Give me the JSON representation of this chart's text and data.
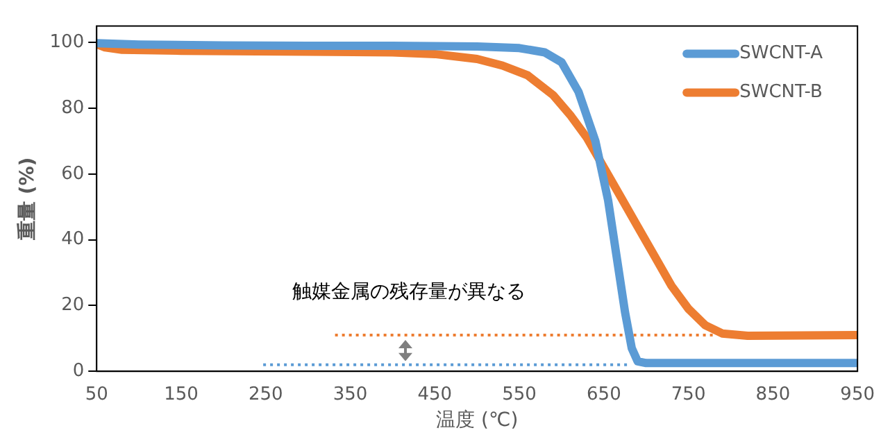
{
  "chart_data": {
    "type": "line",
    "xlabel": "温度 (℃)",
    "ylabel": "重量 (%)",
    "xlim": [
      50,
      950
    ],
    "xticks": [
      50,
      150,
      250,
      350,
      450,
      550,
      650,
      750,
      850,
      950
    ],
    "ylim": [
      0,
      105
    ],
    "yticks": [
      0,
      20,
      40,
      60,
      80,
      100
    ],
    "grid": false,
    "legend": "top right",
    "marker": "none",
    "line_style": "solid",
    "annotations": [
      "触媒金属の残存量が異なる"
    ],
    "series": [
      {
        "name": "SWCNT-A",
        "color": "#5b9bd5",
        "x": [
          50,
          100,
          200,
          300,
          400,
          500,
          550,
          580,
          600,
          620,
          640,
          655,
          665,
          675,
          683,
          690,
          700,
          800,
          950
        ],
        "values": [
          99.8,
          99.4,
          99.1,
          99,
          99,
          98.8,
          98.3,
          97,
          94,
          85,
          70,
          52,
          35,
          18,
          7,
          3,
          2.5,
          2.5,
          2.5
        ]
      },
      {
        "name": "SWCNT-B",
        "color": "#ed7d31",
        "x": [
          50,
          60,
          80,
          150,
          300,
          400,
          450,
          500,
          530,
          560,
          590,
          610,
          630,
          650,
          670,
          690,
          710,
          730,
          750,
          770,
          790,
          820,
          950
        ],
        "values": [
          99.5,
          98.5,
          97.8,
          97.5,
          97.2,
          97,
          96.5,
          95,
          93,
          90,
          84,
          78,
          71,
          62,
          53,
          44,
          35,
          26,
          19,
          14,
          11.5,
          10.8,
          11
        ]
      },
      {
        "color": "#ed7d31",
        "line_style": "dotted",
        "x": [
          332,
          780
        ],
        "values": [
          11,
          11
        ]
      },
      {
        "color": "#5b9bd5",
        "line_style": "dotted",
        "x": [
          247,
          680
        ],
        "values": [
          2,
          2
        ]
      }
    ]
  }
}
